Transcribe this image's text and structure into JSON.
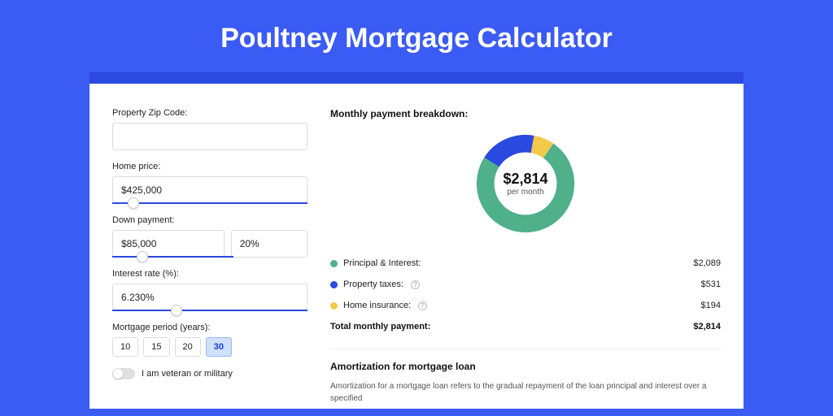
{
  "title": "Poultney Mortgage Calculator",
  "colors": {
    "page_bg": "#3b5bf5",
    "band_bg": "#2a4ae0",
    "card_bg": "#ffffff",
    "text": "#222222",
    "accent": "#2a4ae0"
  },
  "form": {
    "zip_label": "Property Zip Code:",
    "zip_value": "",
    "home_price_label": "Home price:",
    "home_price_value": "$425,000",
    "home_price_slider_pct": 8,
    "down_payment_label": "Down payment:",
    "down_payment_value": "$85,000",
    "down_payment_pct": "20%",
    "down_payment_slider_pct": 20,
    "interest_label": "Interest rate (%):",
    "interest_value": "6.230%",
    "interest_slider_pct": 30,
    "period_label": "Mortgage period (years):",
    "periods": [
      {
        "label": "10",
        "active": false
      },
      {
        "label": "15",
        "active": false
      },
      {
        "label": "20",
        "active": false
      },
      {
        "label": "30",
        "active": true
      }
    ],
    "veteran_label": "I am veteran or military",
    "veteran_on": false
  },
  "breakdown": {
    "title": "Monthly payment breakdown:",
    "donut": {
      "amount": "$2,814",
      "sub": "per month",
      "slices": [
        {
          "name": "home_insurance",
          "color": "#f3c94b",
          "pct": 6.9
        },
        {
          "name": "principal_interest",
          "color": "#4fb08a",
          "pct": 74.2
        },
        {
          "name": "property_taxes",
          "color": "#2a4ae0",
          "pct": 18.9
        }
      ]
    },
    "items": [
      {
        "label": "Principal & Interest:",
        "value": "$2,089",
        "color": "#4fb08a",
        "info": false
      },
      {
        "label": "Property taxes:",
        "value": "$531",
        "color": "#2a4ae0",
        "info": true
      },
      {
        "label": "Home insurance:",
        "value": "$194",
        "color": "#f3c94b",
        "info": true
      }
    ],
    "total_label": "Total monthly payment:",
    "total_value": "$2,814"
  },
  "amortization": {
    "title": "Amortization for mortgage loan",
    "body": "Amortization for a mortgage loan refers to the gradual repayment of the loan principal and interest over a specified"
  }
}
